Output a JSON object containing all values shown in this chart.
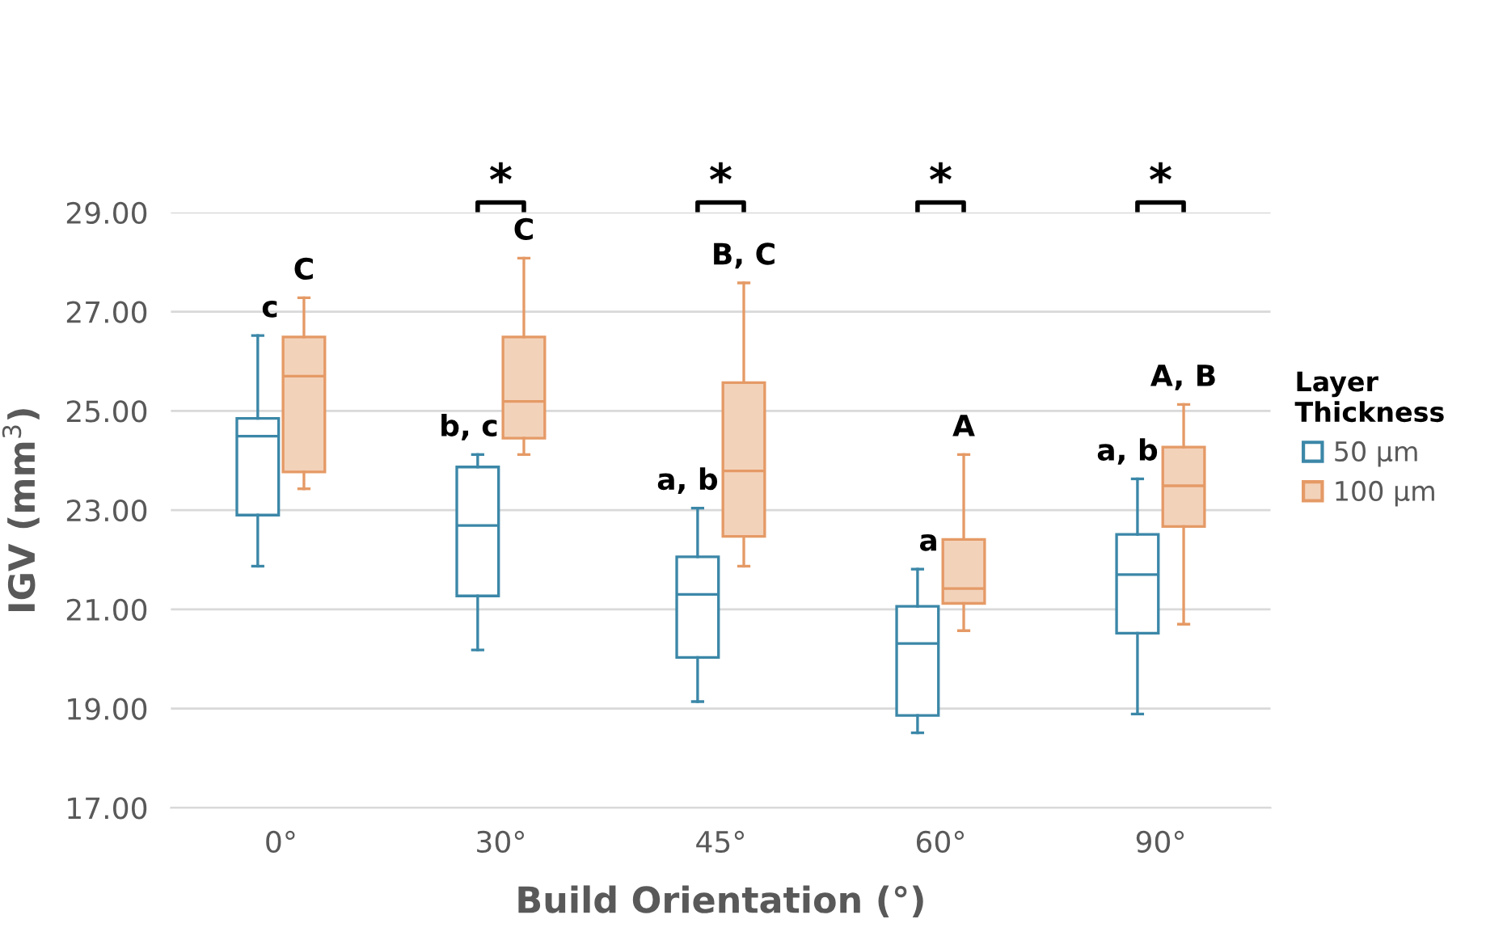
{
  "chart_data": {
    "type": "box",
    "xlabel": "Build Orientation (°)",
    "ylabel": "IGV (mm$^{3}$)",
    "legend_title": "Layer\nThickness",
    "legend": "right",
    "grid": "y",
    "categories": [
      "0°",
      "30°",
      "45°",
      "60°",
      "90°"
    ],
    "ylim": [
      17,
      29
    ],
    "yticks": [
      {
        "value": 17,
        "label": "17.00"
      },
      {
        "value": 19,
        "label": "19.00"
      },
      {
        "value": 21,
        "label": "21.00"
      },
      {
        "value": 23,
        "label": "23.00"
      },
      {
        "value": 25,
        "label": "25.00"
      },
      {
        "value": 27,
        "label": "27.00"
      },
      {
        "value": 29,
        "label": "29.00"
      }
    ],
    "series": [
      {
        "name": "50 µm",
        "color": "#3b87a8",
        "boxes": [
          {
            "low": 21.87,
            "q1": 22.9,
            "median": 24.49,
            "q3": 24.85,
            "high": 26.52
          },
          {
            "low": 20.18,
            "q1": 21.27,
            "median": 22.69,
            "q3": 23.87,
            "high": 24.12
          },
          {
            "low": 19.14,
            "q1": 20.03,
            "median": 21.3,
            "q3": 22.06,
            "high": 23.04
          },
          {
            "low": 18.51,
            "q1": 18.86,
            "median": 20.31,
            "q3": 21.06,
            "high": 21.81
          },
          {
            "low": 18.89,
            "q1": 20.52,
            "median": 21.7,
            "q3": 22.51,
            "high": 23.63
          }
        ]
      },
      {
        "name": "100 µm",
        "color": "#e59a66",
        "boxes": [
          {
            "low": 23.43,
            "q1": 23.77,
            "median": 25.7,
            "q3": 26.49,
            "high": 27.28
          },
          {
            "low": 24.12,
            "q1": 24.45,
            "median": 25.19,
            "q3": 26.49,
            "high": 28.08
          },
          {
            "low": 21.87,
            "q1": 22.47,
            "median": 23.79,
            "q3": 25.57,
            "high": 27.58
          },
          {
            "low": 20.57,
            "q1": 21.12,
            "median": 21.42,
            "q3": 22.41,
            "high": 24.12
          },
          {
            "low": 20.7,
            "q1": 22.67,
            "median": 23.49,
            "q3": 24.27,
            "high": 25.13
          }
        ]
      }
    ],
    "annotations": [
      "c",
      "C",
      "b, c",
      "C",
      "a, b",
      "B, C",
      "a",
      "A",
      "a, b",
      "A, B",
      "*",
      "*",
      "*",
      "*"
    ]
  }
}
